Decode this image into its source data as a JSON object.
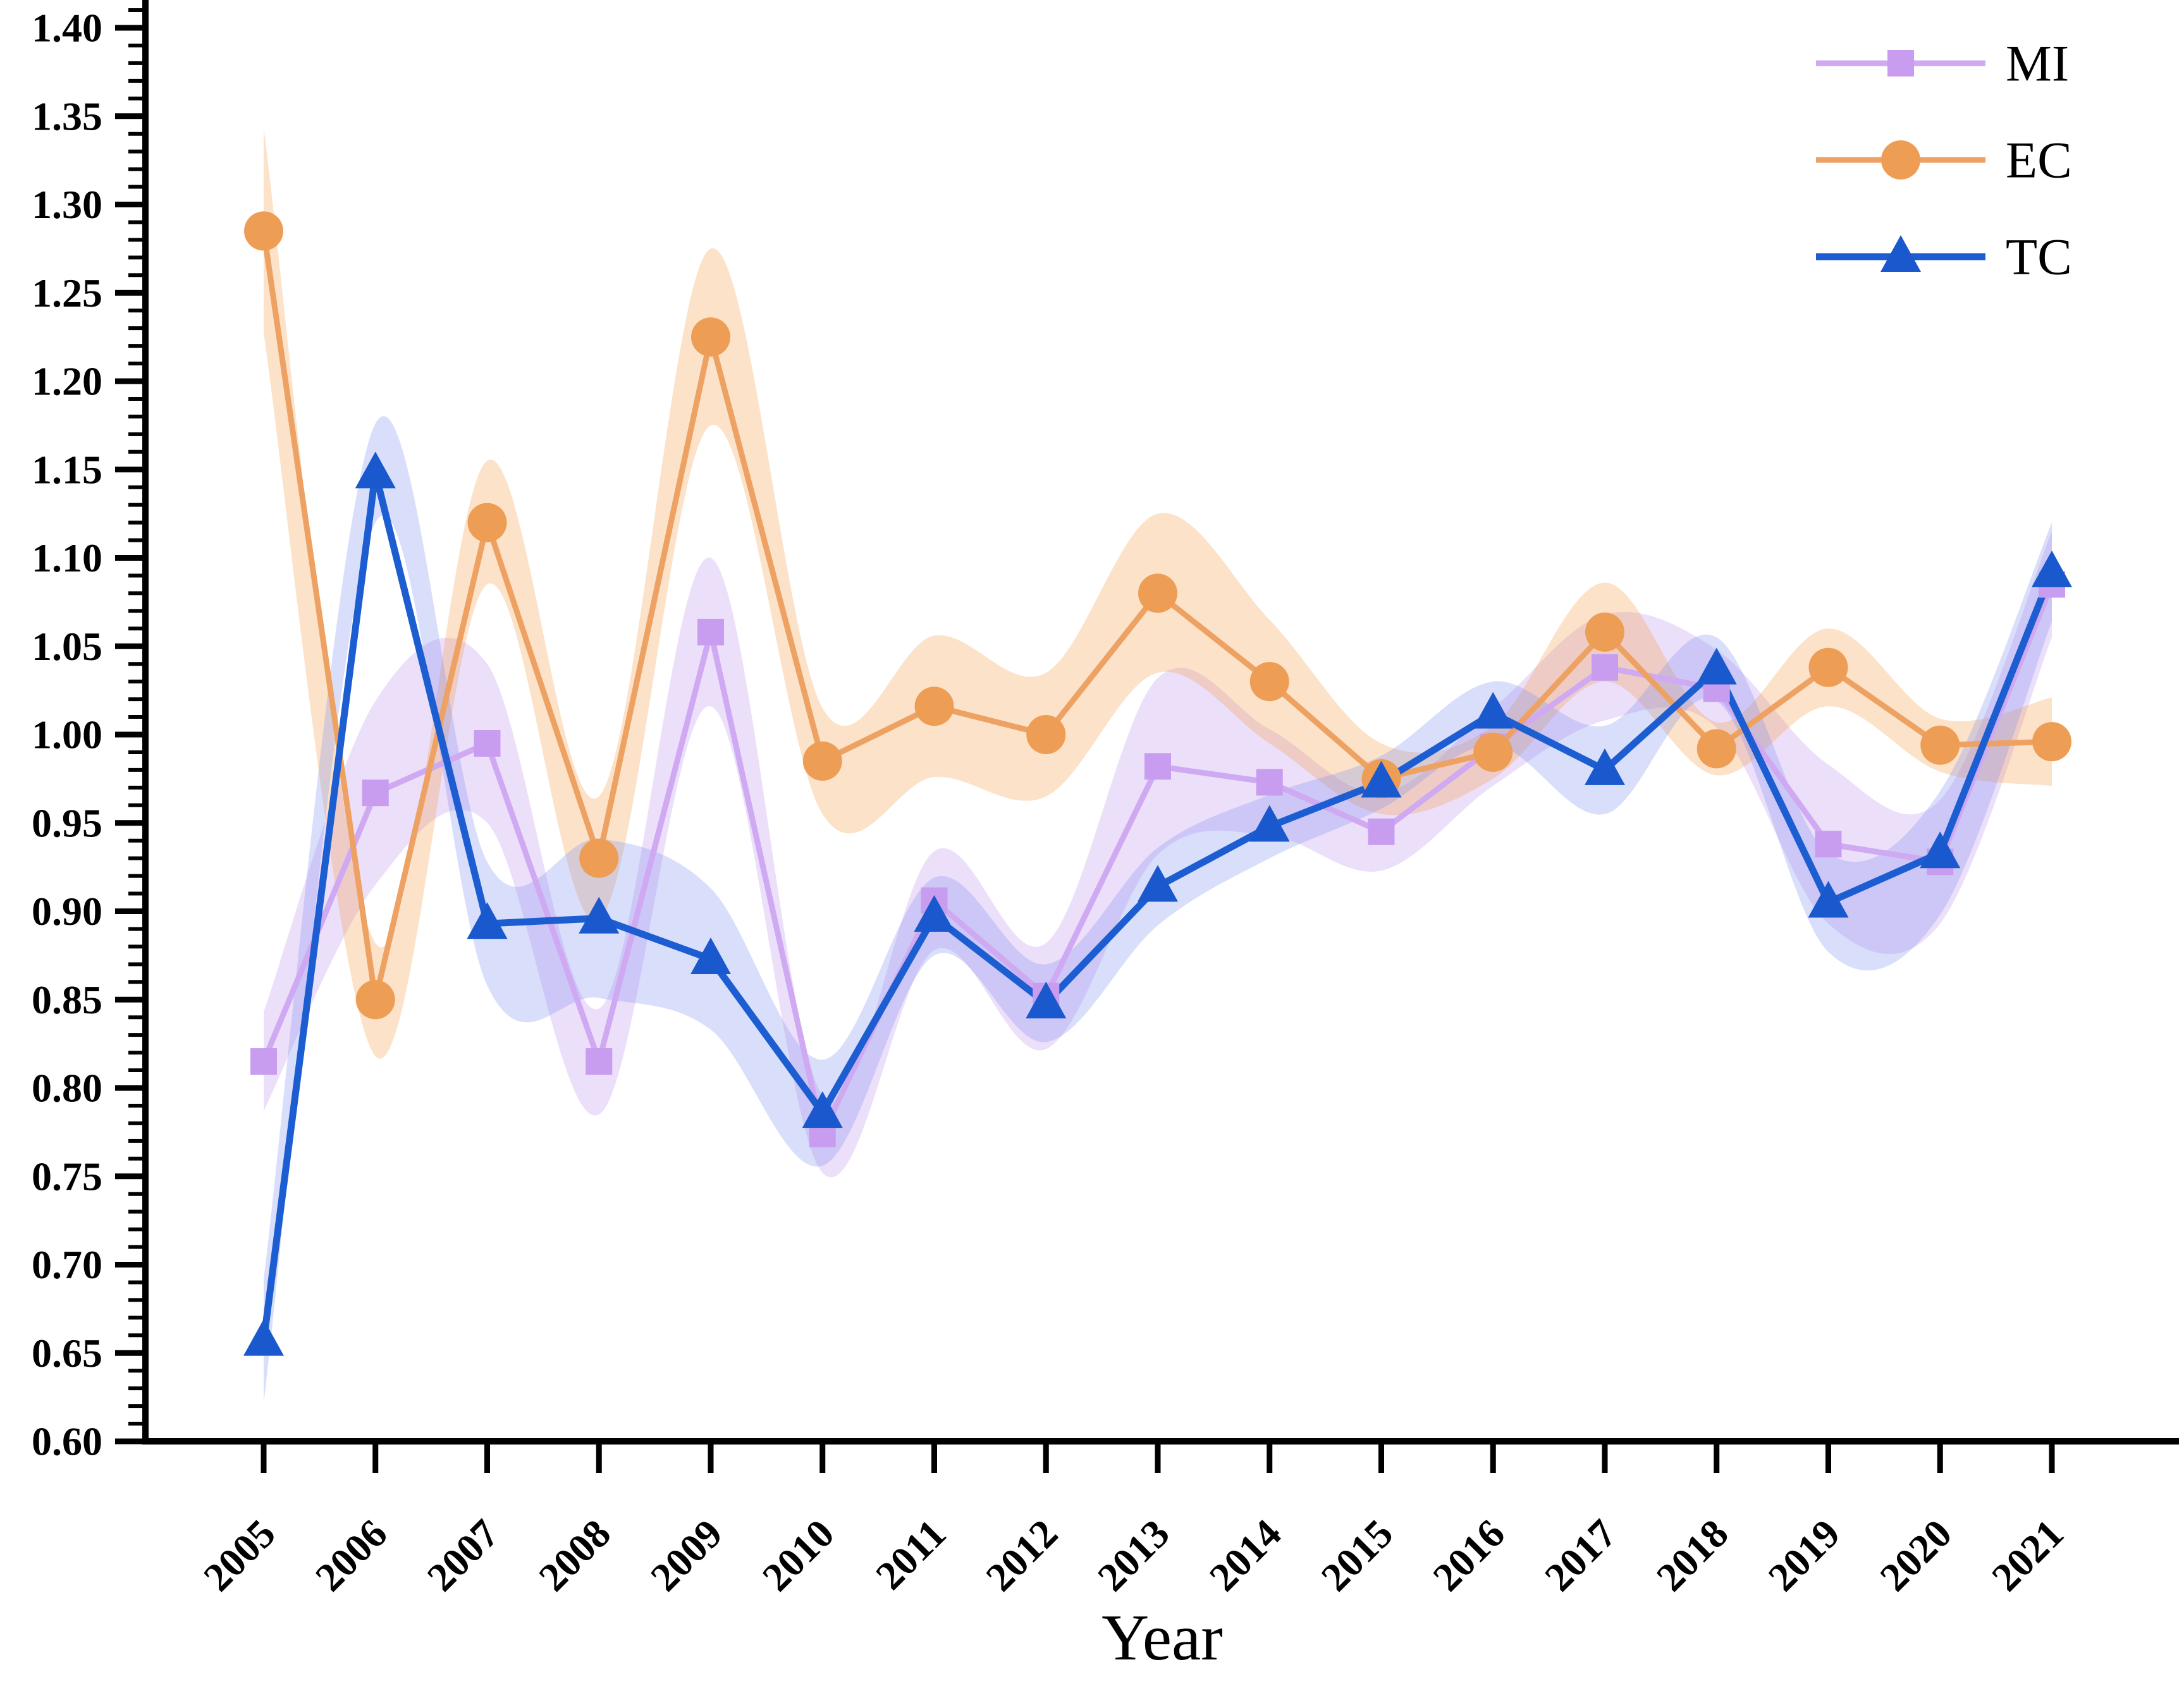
{
  "chart_data": {
    "type": "line",
    "title": "",
    "xlabel": "Year",
    "ylabel": "",
    "x_tick_labels": [
      "2005",
      "2006",
      "2007",
      "2008",
      "2009",
      "2010",
      "2011",
      "2012",
      "2013",
      "2014",
      "2015",
      "2016",
      "2017",
      "2018",
      "2019",
      "2020",
      "2021"
    ],
    "y_tick_labels": [
      "0.60",
      "0.65",
      "0.70",
      "0.75",
      "0.80",
      "0.85",
      "0.90",
      "0.95",
      "1.00",
      "1.05",
      "1.10",
      "1.15",
      "1.20",
      "1.25",
      "1.30",
      "1.35",
      "1.40"
    ],
    "ylim": [
      0.6,
      1.4
    ],
    "y_major_step": 0.05,
    "y_minor_step": 0.01,
    "grid": false,
    "legend_position": "top-right",
    "band_note": "each series drawn with smooth shaded confidence band",
    "series": [
      {
        "name": "MI",
        "marker": "square",
        "line_color": "#cfa9f1",
        "marker_color": "#c89df0",
        "band_color": "rgba(197,156,241,0.32)",
        "values": [
          0.815,
          0.967,
          0.995,
          0.815,
          1.058,
          0.774,
          0.906,
          0.852,
          0.982,
          0.973,
          0.945,
          0.993,
          1.038,
          1.026,
          0.938,
          0.928,
          1.085
        ],
        "band_halfwidth": [
          0.028,
          0.052,
          0.045,
          0.03,
          0.042,
          0.022,
          0.028,
          0.03,
          0.05,
          0.03,
          0.022,
          0.022,
          0.03,
          0.022,
          0.045,
          0.035,
          0.03
        ]
      },
      {
        "name": "EC",
        "marker": "circle",
        "line_color": "#eda263",
        "marker_color": "#ee9d55",
        "band_color": "rgba(242,166,92,0.33)",
        "values": [
          1.285,
          0.85,
          1.12,
          0.93,
          1.225,
          0.985,
          1.016,
          1.0,
          1.08,
          1.03,
          0.975,
          0.99,
          1.058,
          0.992,
          1.038,
          0.994,
          0.996
        ],
        "band_halfwidth": [
          0.058,
          0.032,
          0.035,
          0.035,
          0.05,
          0.03,
          0.04,
          0.035,
          0.045,
          0.035,
          0.02,
          0.015,
          0.028,
          0.015,
          0.022,
          0.015,
          0.025
        ]
      },
      {
        "name": "TC",
        "marker": "triangle",
        "line_color": "#1c5ed1",
        "marker_color": "#1a58cd",
        "band_color": "rgba(128,147,238,0.30)",
        "values": [
          0.657,
          1.148,
          0.893,
          0.896,
          0.873,
          0.786,
          0.897,
          0.848,
          0.914,
          0.948,
          0.973,
          1.012,
          0.98,
          1.037,
          0.905,
          0.933,
          1.092
        ],
        "band_halfwidth": [
          0.035,
          0.028,
          0.035,
          0.045,
          0.04,
          0.03,
          0.022,
          0.022,
          0.022,
          0.018,
          0.015,
          0.018,
          0.025,
          0.018,
          0.028,
          0.035,
          0.028
        ]
      }
    ]
  },
  "layout_colors": {
    "background": "#ffffff",
    "axis": "#000000",
    "text": "#000000"
  }
}
